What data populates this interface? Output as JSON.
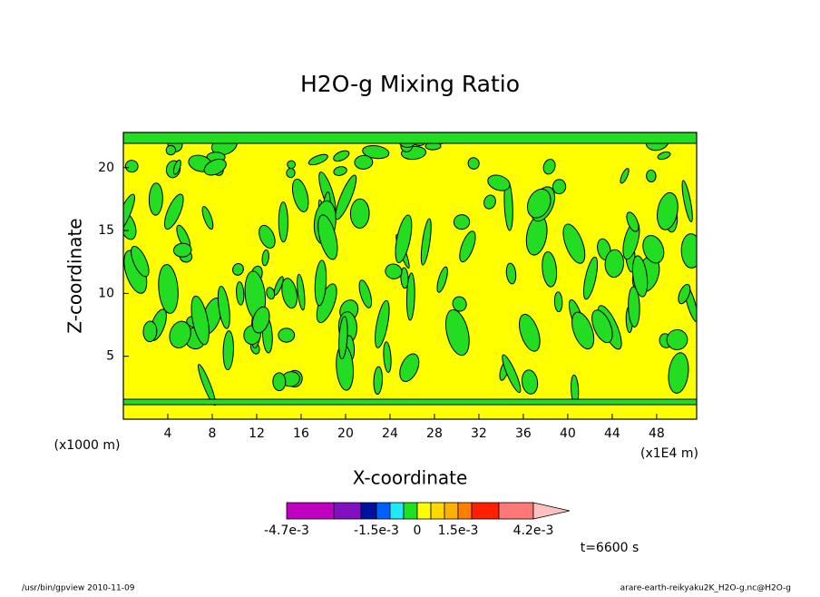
{
  "chart_data": {
    "type": "contour",
    "title": "H2O-g Mixing Ratio",
    "x_label": "X-coordinate",
    "y_label": "Z-coordinate",
    "x_units": "(x1E4 m)",
    "y_units": "(x1000 m)",
    "xlim": [
      0,
      51.6
    ],
    "xticks": [
      4,
      8,
      12,
      16,
      20,
      24,
      28,
      32,
      36,
      40,
      44,
      48
    ],
    "ylim": [
      0,
      22.8
    ],
    "yticks": [
      5,
      10,
      15,
      20
    ],
    "grid": false,
    "field_color": "#ffff00",
    "contour_color": "#22dd22",
    "colorbar": {
      "colors": [
        "#c000c0",
        "#8010c0",
        "#0010a0",
        "#0060ff",
        "#20e8ff",
        "#20e020",
        "#ffff00",
        "#ffd800",
        "#ffb000",
        "#ff8000",
        "#ff2000",
        "#ff7878",
        "#ffc0c0"
      ],
      "ticks": [
        {
          "value": -0.0047,
          "label": "-4.7e-3"
        },
        {
          "value": -0.0015,
          "label": "-1.5e-3"
        },
        0,
        {
          "value": 0.0015,
          "label": "1.5e-3"
        },
        {
          "value": 0.0042,
          "label": "4.2e-3"
        }
      ]
    },
    "annotation": "t=6600 s"
  },
  "footer": {
    "left": "/usr/bin/gpview  2010-11-09",
    "right": "arare-earth-reikyaku2K_H2O-g.nc@H2O-g"
  }
}
